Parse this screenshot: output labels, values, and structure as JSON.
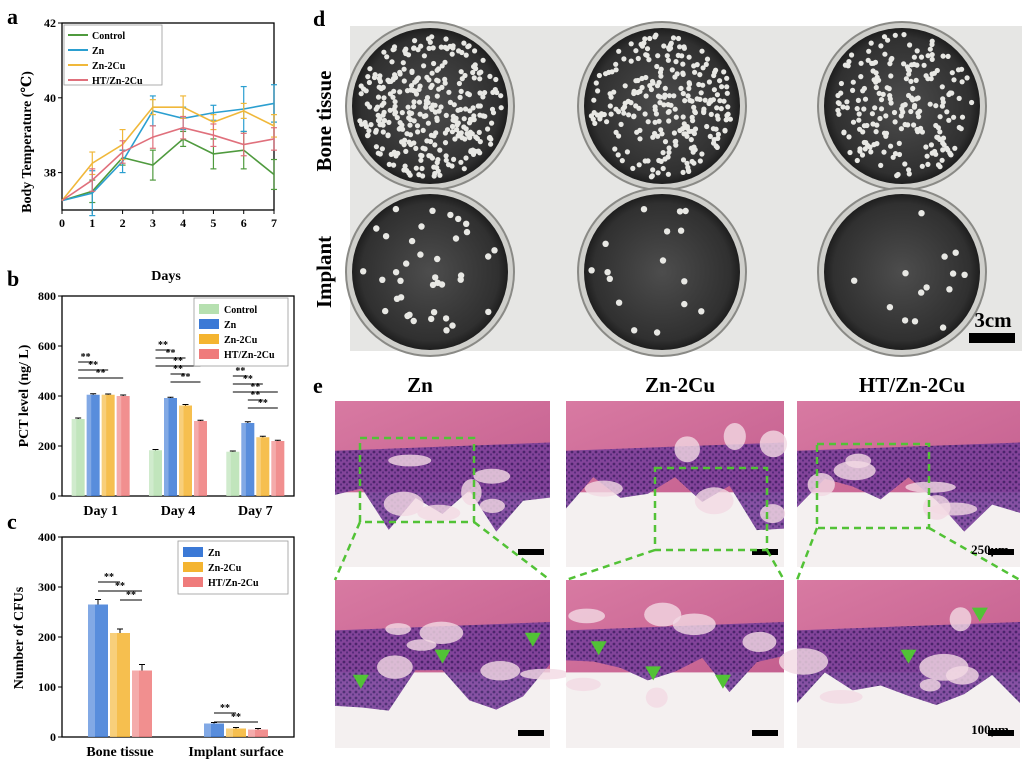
{
  "panels": {
    "a": "a",
    "b": "b",
    "c": "c",
    "d": "d",
    "e": "e"
  },
  "colors": {
    "control": "#4f9a3e",
    "zn": "#2b9fd0",
    "zn2cu": "#f0b83a",
    "ht": "#e0707c",
    "bar_control": "#b6e0b0",
    "bar_zn": "#3b79d6",
    "bar_zn2cu": "#f4b430",
    "bar_ht": "#ef7b7b"
  },
  "chart_data": [
    {
      "type": "line",
      "panel": "a",
      "xlabel": "Days",
      "ylabel": "Body Temperature (℃)",
      "x": [
        0,
        1,
        2,
        3,
        4,
        5,
        6,
        7
      ],
      "xlim": [
        0,
        7
      ],
      "ylim": [
        37,
        42
      ],
      "yticks": [
        38,
        40,
        42
      ],
      "series": [
        {
          "name": "Control",
          "color": "#4f9a3e",
          "values": [
            37.25,
            37.5,
            38.4,
            38.2,
            38.9,
            38.5,
            38.6,
            37.95
          ],
          "err": [
            0,
            0.3,
            0.2,
            0.4,
            0.2,
            0.4,
            0.5,
            0.4
          ]
        },
        {
          "name": "Zn",
          "color": "#2b9fd0",
          "values": [
            37.25,
            37.45,
            38.3,
            39.65,
            39.45,
            39.6,
            39.7,
            39.85
          ],
          "err": [
            0,
            0.6,
            0.3,
            0.4,
            0.3,
            0.2,
            0.6,
            0.5
          ]
        },
        {
          "name": "Zn-2Cu",
          "color": "#f0b83a",
          "values": [
            37.25,
            38.25,
            38.75,
            39.75,
            39.75,
            39.35,
            39.65,
            39.25
          ],
          "err": [
            0,
            0.3,
            0.4,
            0.2,
            0.3,
            0.2,
            0.2,
            0.3
          ]
        },
        {
          "name": "HT/Zn-2Cu",
          "color": "#e0707c",
          "values": [
            37.25,
            37.8,
            38.55,
            38.95,
            39.2,
            39.0,
            38.75,
            38.9
          ],
          "err": [
            0,
            0.3,
            0.3,
            0.3,
            0.3,
            0.3,
            0.3,
            0.3
          ]
        }
      ]
    },
    {
      "type": "bar",
      "panel": "b",
      "ylabel": "PCT level (ng/ L)",
      "categories": [
        "Day 1",
        "Day 4",
        "Day 7"
      ],
      "ylim": [
        0,
        800
      ],
      "yticks": [
        0,
        200,
        400,
        600,
        800
      ],
      "series": [
        {
          "name": "Control",
          "color": "#b6e0b0",
          "values": [
            308,
            183,
            177
          ],
          "err": [
            4,
            3,
            3
          ]
        },
        {
          "name": "Zn",
          "color": "#3b79d6",
          "values": [
            405,
            392,
            292
          ],
          "err": [
            4,
            3,
            5
          ]
        },
        {
          "name": "Zn-2Cu",
          "color": "#f4b430",
          "values": [
            405,
            362,
            235
          ],
          "err": [
            3,
            4,
            4
          ]
        },
        {
          "name": "HT/Zn-2Cu",
          "color": "#ef7b7b",
          "values": [
            400,
            300,
            220
          ],
          "err": [
            4,
            3,
            3
          ]
        }
      ],
      "significance": "**"
    },
    {
      "type": "bar",
      "panel": "c",
      "ylabel": "Number of CFUs",
      "categories": [
        "Bone tissue",
        "Implant surface"
      ],
      "ylim": [
        0,
        400
      ],
      "yticks": [
        0,
        100,
        200,
        300,
        400
      ],
      "series": [
        {
          "name": "Zn",
          "color": "#3b79d6",
          "values": [
            265,
            27
          ],
          "err": [
            10,
            2
          ]
        },
        {
          "name": "Zn-2Cu",
          "color": "#f4b430",
          "values": [
            208,
            17
          ],
          "err": [
            8,
            2
          ]
        },
        {
          "name": "HT/Zn-2Cu",
          "color": "#ef7b7b",
          "values": [
            133,
            15
          ],
          "err": [
            12,
            2
          ]
        }
      ],
      "significance": "**"
    }
  ],
  "panel_d": {
    "row_labels": [
      "Bone tissue",
      "Implant"
    ],
    "scale_bar": "3cm"
  },
  "panel_e": {
    "columns": [
      "Zn",
      "Zn-2Cu",
      "HT/Zn-2Cu"
    ],
    "scale_top": "250μm",
    "scale_bottom": "100μm"
  }
}
